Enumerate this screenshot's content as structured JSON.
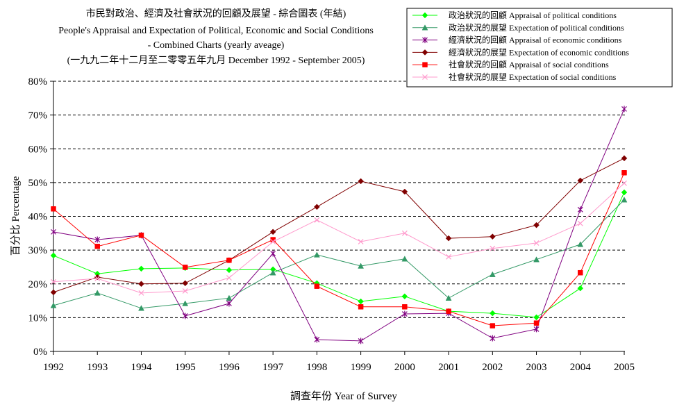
{
  "chart_data": {
    "type": "line",
    "title_lines": [
      "市民對政治、經濟及社會狀況的回顧及展望 - 綜合圖表 (年結)",
      "People's Appraisal and Expectation of Political, Economic and Social Conditions",
      "- Combined Charts  (yearly aveage)",
      "(一九九二年十二月至二零零五年九月 December 1992 - September 2005)"
    ],
    "xlabel": "調查年份 Year of Survey",
    "ylabel": "百分比 Percentage",
    "x": [
      1992,
      1993,
      1994,
      1995,
      1996,
      1997,
      1998,
      1999,
      2000,
      2001,
      2002,
      2003,
      2004,
      2005
    ],
    "ylim": [
      0,
      80
    ],
    "yticks": [
      0,
      10,
      20,
      30,
      40,
      50,
      60,
      70,
      80
    ],
    "ytick_labels": [
      "0%",
      "10%",
      "20%",
      "30%",
      "40%",
      "50%",
      "60%",
      "70%",
      "80%"
    ],
    "grid": true,
    "legend": "top-right",
    "series": [
      {
        "name": "政治狀況的回顧 Appraisal of political conditions",
        "color": "#00FF00",
        "marker": "diamond",
        "values": [
          28.4,
          23.0,
          24.5,
          24.7,
          24.1,
          24.3,
          20.2,
          14.8,
          16.3,
          11.9,
          11.3,
          10.1,
          18.7,
          47.1
        ]
      },
      {
        "name": "政治狀況的展望 Expectation of political conditions",
        "color": "#339966",
        "marker": "triangle",
        "values": [
          13.6,
          17.3,
          12.8,
          14.2,
          15.8,
          23.3,
          28.6,
          25.3,
          27.4,
          15.8,
          22.8,
          27.2,
          31.7,
          44.9
        ]
      },
      {
        "name": "經濟狀況的回顧 Appraisal of economic conditions",
        "color": "#800080",
        "marker": "asterisk",
        "values": [
          35.4,
          33.1,
          34.4,
          10.5,
          14.2,
          29.0,
          3.5,
          3.1,
          11.1,
          11.3,
          3.9,
          6.6,
          42.0,
          71.8
        ]
      },
      {
        "name": "經濟狀況的展望 Expectation of economic conditions",
        "color": "#800000",
        "marker": "diamond",
        "values": [
          17.5,
          22.0,
          20.0,
          20.2,
          27.0,
          35.4,
          42.8,
          50.4,
          47.3,
          33.5,
          34.0,
          37.4,
          50.6,
          57.2
        ]
      },
      {
        "name": "社會狀況的回顧 Appraisal of social conditions",
        "color": "#FF0000",
        "marker": "square",
        "values": [
          42.2,
          31.1,
          34.4,
          24.9,
          27.0,
          33.1,
          19.3,
          13.2,
          13.2,
          11.9,
          7.6,
          8.4,
          23.3,
          52.9
        ]
      },
      {
        "name": "社會狀況的展望 Expectation of social conditions",
        "color": "#FF99CC",
        "marker": "x",
        "values": [
          20.6,
          21.6,
          17.3,
          17.9,
          21.8,
          32.5,
          38.9,
          32.5,
          35.0,
          28.0,
          30.5,
          32.1,
          37.9,
          49.8
        ]
      }
    ]
  }
}
